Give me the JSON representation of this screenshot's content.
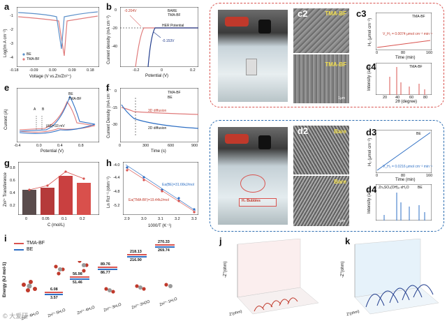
{
  "panels": {
    "a": {
      "label": "a",
      "xlabel": "Voltage (V vs.Zn/Zn²⁺)",
      "ylabel": "Log(Im A cm⁻²)",
      "xticks": [
        "-0.18",
        "-0.09",
        "0.00",
        "0.09",
        "0.18"
      ],
      "yticks": [
        "-1",
        "-2",
        "-3",
        "-4"
      ],
      "legend": [
        "BE",
        "TMA-BF"
      ]
    },
    "b": {
      "label": "b",
      "xlabel": "Potential (V)",
      "ylabel": "Current density (mA cm⁻²)",
      "xticks": [
        "-0.2",
        "0",
        "0.2"
      ],
      "yticks": [
        "0",
        "-20",
        "-40"
      ],
      "legend": [
        "BARE",
        "TMA-BF"
      ],
      "annotations": [
        "-0.204V",
        "-0.153V",
        "HER Potential"
      ]
    },
    "e": {
      "label": "e",
      "xlabel": "Potential (V)",
      "ylabel": "Current (A)",
      "xticks": [
        "-0.4",
        "0.0",
        "0.4",
        "0.8"
      ],
      "legend": [
        "BE",
        "TMA-BF"
      ],
      "annotations": [
        "A",
        "B",
        "|ΔE|=33 mV"
      ]
    },
    "f": {
      "label": "f",
      "xlabel": "Time (s)",
      "ylabel": "Current Density (mA cm⁻²)",
      "xticks": [
        "0",
        "300",
        "600",
        "900"
      ],
      "yticks": [
        "0",
        "-15",
        "-30"
      ],
      "legend": [
        "TMA-BF",
        "BE"
      ],
      "annotations": [
        "3D diffusion",
        "2D diffusion"
      ]
    },
    "g": {
      "label": "g",
      "xlabel": "C (mol/L)",
      "ylabel": "Zn²⁺ Transference",
      "xticks": [
        "0",
        "0.05",
        "0.1",
        "0.2"
      ],
      "yticks": [
        "0.2",
        "0.4",
        "0.6",
        "0.8"
      ]
    },
    "h": {
      "label": "h",
      "xlabel": "1000/T (K⁻¹)",
      "ylabel": "Ln Rct⁻¹ (ohm⁻¹)",
      "xticks": [
        "2.9",
        "3.0",
        "3.1",
        "3.2",
        "3.3"
      ],
      "yticks": [
        "-4.0",
        "-4.4",
        "-4.8",
        "-5.2"
      ],
      "annotations": [
        "Ea(BE)=31.66kJ/mol",
        "Ea(TMA-BF)=19.44kJ/mol"
      ]
    },
    "i": {
      "label": "i",
      "ylabel": "Energy (kJ mol-1)",
      "legend": [
        "TMA-BF",
        "BE"
      ],
      "categories": [
        "Zn²⁺·6H₂O",
        "Zn²⁺·5H₂O",
        "Zn²⁺·4H₂O",
        "Zn²⁺·3H₂O",
        "Zn²⁺·2H2O",
        "Zn²⁺·1H₂O"
      ],
      "values_top": [
        "",
        "6.08",
        "56.98",
        "89.76",
        "218.13",
        "270.33"
      ],
      "values_bottom": [
        "",
        "3.57",
        "51.46",
        "86.77",
        "216.90",
        "269.74"
      ]
    },
    "c1": {
      "label": "c1"
    },
    "c2": {
      "label": "c2",
      "tags": [
        "TMA-BF",
        "TMA-BF"
      ],
      "scale": "1μm"
    },
    "c3": {
      "label": "c3",
      "xlabel": "Time (min)",
      "ylabel": "H₂ (μmol cm⁻²)",
      "xticks": [
        "0",
        "40",
        "80",
        "120",
        "160"
      ],
      "legend": "TMA-BF",
      "annotation": "V_H₂ = 0.0074 μmol cm⁻² min⁻¹"
    },
    "c4": {
      "label": "c4",
      "xlabel": "2θ (degree)",
      "ylabel": "Intensity (a.u.)",
      "xticks": [
        "20",
        "40",
        "60",
        "80"
      ],
      "legend": "TMA-BF"
    },
    "d1": {
      "label": "d1",
      "annotation": "H₂ Bubbles"
    },
    "d2": {
      "label": "d2",
      "tags": [
        "Bare",
        "Bare"
      ],
      "scale": "1μm"
    },
    "d3": {
      "label": "d3",
      "xlabel": "Time (min)",
      "ylabel": "H₂ (μmol cm⁻²)",
      "xticks": [
        "0",
        "40",
        "80",
        "120",
        "160"
      ],
      "legend": "BE",
      "annotation": "V_H₂ = 0.0216 μmol cm⁻² min⁻¹"
    },
    "d4": {
      "label": "d4",
      "xlabel": "2θ (degree)",
      "ylabel": "Intensity (a.u.)",
      "legend": [
        "Zn₄SO₄(OH)₆·xH₂O",
        "BE"
      ]
    },
    "j": {
      "label": "j",
      "zlabel": "-Z''(ohm)",
      "xlabel": "Z'(ohm)"
    },
    "k": {
      "label": "k",
      "zlabel": "-Z''(ohm)",
      "xlabel": "Z'(ohm)"
    }
  },
  "watermark": "© 大爱研"
}
